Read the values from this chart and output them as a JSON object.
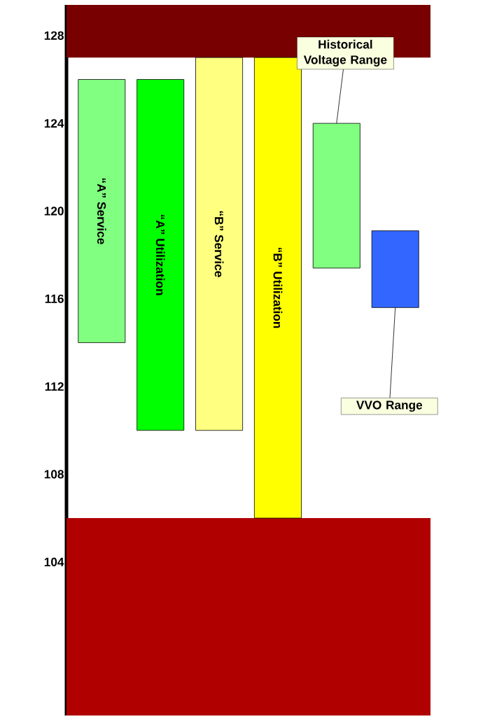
{
  "chart_data": {
    "type": "bar",
    "categories": [
      "“A” Service",
      "“A” Utilization",
      "“B” Service",
      "“B” Utilization",
      null,
      null
    ],
    "base": [
      114,
      110,
      110,
      106,
      117.4,
      115.6
    ],
    "values": [
      12,
      16,
      17,
      21,
      6.6,
      3.5
    ],
    "colors": [
      "#80ff80",
      "#00ff00",
      "#ffff80",
      "#ffff00",
      "#80ff80",
      "#3366ff"
    ],
    "bands": [
      {
        "axis": "y",
        "from": 127,
        "to": 129.4,
        "color": "#780000"
      },
      {
        "axis": "y",
        "from": 97,
        "to": 106,
        "color": "#b00000"
      }
    ],
    "annotations": [
      "Historical Voltage Range",
      "VVO Range"
    ],
    "ylim": [
      97,
      129.4
    ],
    "yticks": [
      104,
      108,
      112,
      116,
      120,
      124,
      128
    ]
  }
}
